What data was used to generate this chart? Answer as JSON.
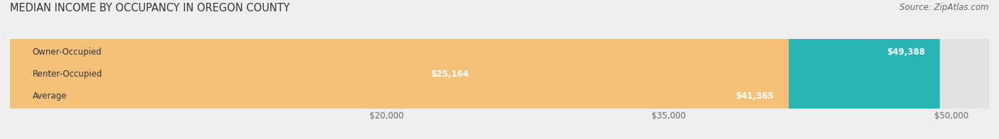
{
  "title": "MEDIAN INCOME BY OCCUPANCY IN OREGON COUNTY",
  "source": "Source: ZipAtlas.com",
  "categories": [
    "Owner-Occupied",
    "Renter-Occupied",
    "Average"
  ],
  "values": [
    49388,
    25164,
    41365
  ],
  "bar_colors": [
    "#2ab5b5",
    "#c8a8d0",
    "#f5c07a"
  ],
  "bar_labels": [
    "$49,388",
    "$25,164",
    "$41,365"
  ],
  "xlim": [
    0,
    52000
  ],
  "xticks": [
    20000,
    35000,
    50000
  ],
  "xtick_labels": [
    "$20,000",
    "$35,000",
    "$50,000"
  ],
  "bg_color": "#efefef",
  "bar_bg_color": "#e2e2e2",
  "title_fontsize": 10.5,
  "source_fontsize": 8.5,
  "label_fontsize": 8.5,
  "tick_fontsize": 8.5
}
